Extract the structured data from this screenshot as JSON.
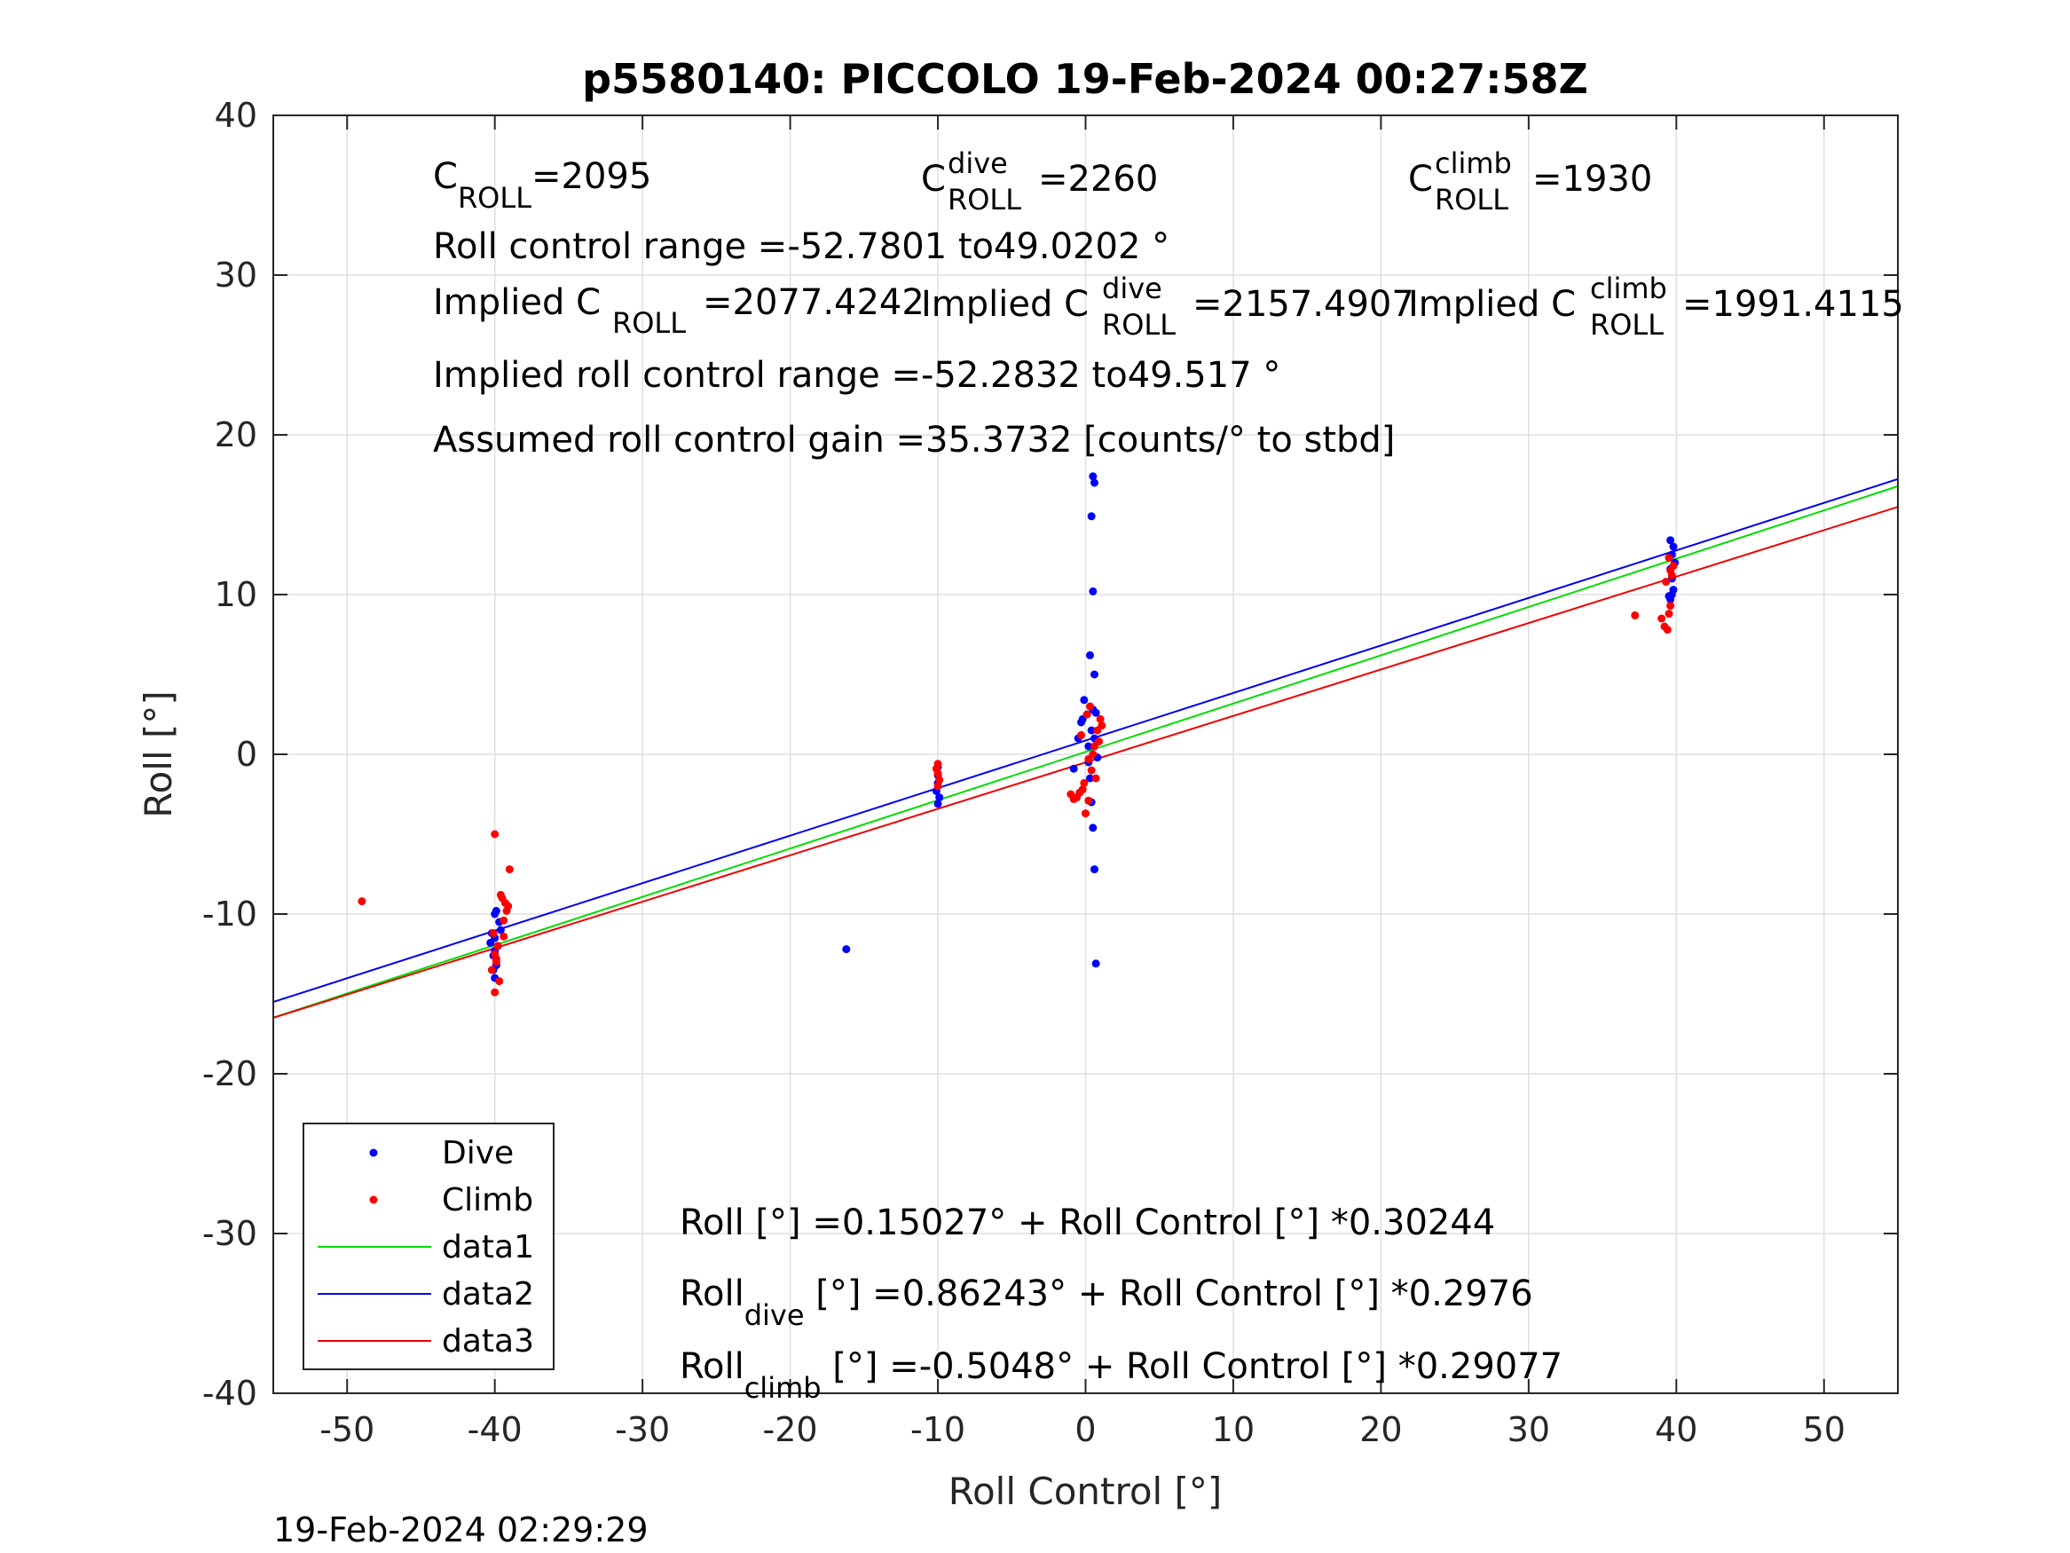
{
  "chart_data": {
    "type": "scatter",
    "title": "p5580140: PICCOLO 19-Feb-2024 00:27:58Z",
    "xlabel": "Roll Control [°]",
    "ylabel": "Roll [°]",
    "xlim": [
      -55,
      55
    ],
    "ylim": [
      -40,
      40
    ],
    "xticks": [
      "-50",
      "-40",
      "-30",
      "-20",
      "-10",
      "0",
      "10",
      "20",
      "30",
      "40",
      "50"
    ],
    "xtick_values": [
      -50,
      -40,
      -30,
      -20,
      -10,
      0,
      10,
      20,
      30,
      40,
      50
    ],
    "yticks": [
      "40",
      "30",
      "20",
      "10",
      "0",
      "-10",
      "-20",
      "-30",
      "-40"
    ],
    "ytick_values": [
      40,
      30,
      20,
      10,
      0,
      -10,
      -20,
      -30,
      -40
    ],
    "grid": true,
    "legend_position": "bottom-left",
    "legend": [
      "Dive",
      "Climb",
      "data1",
      "data2",
      "data3"
    ],
    "colors": {
      "dive": "#0000ff",
      "climb": "#ff0000",
      "data1": "#00dd00",
      "data2": "#0000ee",
      "data3": "#ee0000"
    },
    "series": [
      {
        "name": "Dive",
        "style": "points",
        "color": "#0000ff",
        "x": [
          -40.0,
          -40.2,
          -39.8,
          -40.1,
          -39.9,
          -40.0,
          -39.7,
          -40.3,
          -39.9,
          -40.0,
          -39.6,
          -40.1,
          -39.8,
          -40.0,
          -10.0,
          -10.0,
          -10.0,
          -10.1,
          -9.9,
          -10.0,
          -16.2,
          -0.8,
          -0.5,
          -0.3,
          -0.1,
          0.1,
          0.2,
          0.3,
          0.4,
          0.5,
          0.6,
          0.7,
          0.5,
          0.6,
          0.4,
          0.5,
          0.3,
          0.6,
          0.5,
          0.4,
          0.5,
          0.2,
          -0.2,
          0.7,
          0.6,
          0.8,
          39.6,
          39.8,
          39.7,
          39.9,
          39.6,
          39.7,
          39.8,
          39.5,
          39.6,
          39.7
        ],
        "y": [
          -10.0,
          -11.2,
          -12.0,
          -12.6,
          -13.2,
          -14.0,
          -10.5,
          -11.8,
          -9.8,
          -12.3,
          -11.0,
          -13.5,
          -12.0,
          -11.5,
          -0.8,
          -1.3,
          -1.8,
          -2.3,
          -2.7,
          -3.1,
          -12.2,
          -0.9,
          1.0,
          2.0,
          3.4,
          2.5,
          0.5,
          -1.5,
          -3.0,
          -4.6,
          -7.2,
          -13.1,
          17.4,
          17.0,
          14.9,
          10.2,
          6.2,
          5.0,
          2.8,
          1.5,
          0.0,
          -0.5,
          2.2,
          2.6,
          1.0,
          -0.2,
          13.4,
          13.0,
          12.5,
          12.0,
          11.6,
          11.0,
          10.3,
          9.9,
          9.7,
          10.0
        ]
      },
      {
        "name": "Climb",
        "style": "points",
        "color": "#ff0000",
        "x": [
          -49.0,
          -40.0,
          -40.1,
          -39.8,
          -39.9,
          -40.2,
          -39.7,
          -40.0,
          -39.3,
          -39.5,
          -39.2,
          -39.4,
          -39.6,
          -39.0,
          -39.1,
          -39.4,
          -40.0,
          -39.9,
          -10.0,
          -10.1,
          -10.0,
          -9.9,
          -10.0,
          -1.0,
          -0.8,
          -0.6,
          -0.4,
          -0.2,
          0.0,
          0.2,
          0.4,
          0.6,
          0.8,
          1.0,
          1.1,
          0.3,
          0.5,
          0.7,
          -0.3,
          0.1,
          0.9,
          0.2,
          -0.1,
          37.2,
          39.0,
          39.2,
          39.4,
          39.5,
          39.6,
          39.3,
          39.7,
          39.8,
          39.5,
          39.6
        ],
        "y": [
          -9.2,
          -5.0,
          -11.2,
          -12.0,
          -12.8,
          -13.5,
          -14.2,
          -14.9,
          -9.3,
          -9.0,
          -9.8,
          -10.4,
          -8.8,
          -7.2,
          -9.5,
          -11.4,
          -12.5,
          -13.0,
          -0.6,
          -0.9,
          -1.2,
          -1.6,
          -2.0,
          -2.5,
          -2.8,
          -2.7,
          -2.4,
          -2.2,
          -3.7,
          -2.9,
          -1.0,
          0.5,
          1.5,
          2.2,
          1.8,
          3.0,
          0.0,
          -1.5,
          1.2,
          2.5,
          0.8,
          -0.3,
          -1.8,
          8.7,
          8.5,
          8.0,
          7.8,
          8.8,
          9.3,
          10.8,
          11.2,
          11.8,
          12.3,
          11.5
        ]
      },
      {
        "name": "data1",
        "style": "line",
        "color": "#00dd00",
        "intercept": 0.15027,
        "slope": 0.30244,
        "x": [
          -55,
          55
        ]
      },
      {
        "name": "data2",
        "style": "line",
        "color": "#0000ee",
        "intercept": 0.86243,
        "slope": 0.2976,
        "x": [
          -55,
          55
        ]
      },
      {
        "name": "data3",
        "style": "line",
        "color": "#ee0000",
        "intercept": -0.5048,
        "slope": 0.29077,
        "x": [
          -55,
          55
        ]
      }
    ],
    "annotations": {
      "c_roll": {
        "base": "C",
        "sub": "ROLL",
        "value": "=2095"
      },
      "c_roll_dive": {
        "base": "C",
        "sup": "dive",
        "sub": "ROLL",
        "value": "=2260"
      },
      "c_roll_climb": {
        "base": "C",
        "sup": "climb",
        "sub": "ROLL",
        "value": "=1930"
      },
      "roll_control_range": "Roll control range =-52.7801 to49.0202 °",
      "implied_c_roll": {
        "prefix": "Implied C",
        "sub": "ROLL",
        "value": "=2077.4242"
      },
      "implied_c_roll_dive": {
        "prefix": "Implied C",
        "sup": "dive",
        "sub": "ROLL",
        "value": "=2157.4907"
      },
      "implied_c_roll_climb": {
        "prefix": "Implied C",
        "sup": "climb",
        "sub": "ROLL",
        "value": "=1991.4115"
      },
      "implied_range": "Implied roll control range =-52.2832 to49.517 °",
      "assumed_gain": "Assumed roll control gain =35.3732 [counts/° to stbd]",
      "fit_all": "Roll [°] =0.15027° + Roll Control [°] *0.30244",
      "fit_dive": {
        "base": "Roll",
        "sub": "dive",
        "rest": " [°] =0.86243° + Roll Control [°] *0.2976"
      },
      "fit_climb": {
        "base": "Roll",
        "sub": "climb",
        "rest": " [°] =-0.5048° + Roll Control [°] *0.29077"
      }
    },
    "footer_timestamp": "19-Feb-2024 02:29:29"
  }
}
